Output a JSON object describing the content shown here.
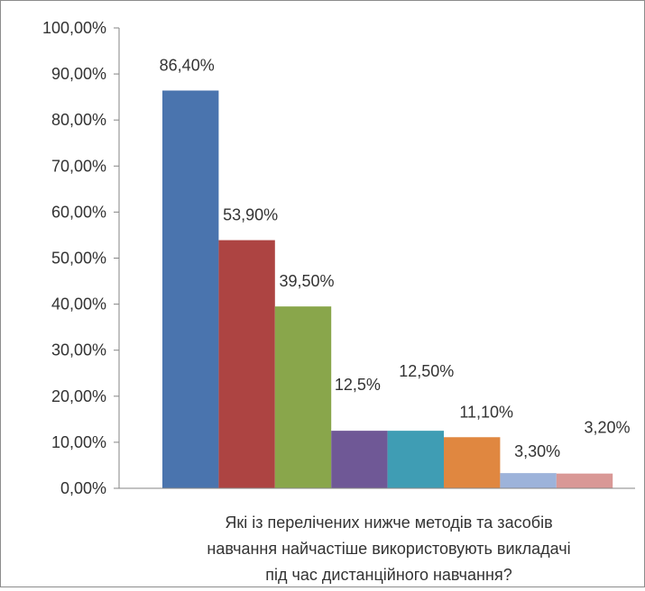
{
  "chart_data": {
    "type": "bar",
    "xlabel_lines": [
      "Які із перелічених нижче методів та засобів",
      "навчання найчастіше  використовують викладачі",
      "під час дистанційного навчання?"
    ],
    "ylim": [
      0,
      100
    ],
    "y_ticks": [
      "0,00%",
      "10,00%",
      "20,00%",
      "30,00%",
      "40,00%",
      "50,00%",
      "60,00%",
      "70,00%",
      "80,00%",
      "90,00%",
      "100,00%"
    ],
    "grid": false,
    "legend": "none",
    "series": [
      {
        "value": 86.4,
        "label": "86,40%",
        "color": "#4a74ae"
      },
      {
        "value": 53.9,
        "label": "53,90%",
        "color": "#ad4442"
      },
      {
        "value": 39.5,
        "label": "39,50%",
        "color": "#89a64b"
      },
      {
        "value": 12.5,
        "label": "12,5%",
        "color": "#6f5896"
      },
      {
        "value": 12.5,
        "label": "12,50%",
        "color": "#3f9db4"
      },
      {
        "value": 11.1,
        "label": "11,10%",
        "color": "#e08740"
      },
      {
        "value": 3.3,
        "label": "3,30%",
        "color": "#9db3da"
      },
      {
        "value": 3.2,
        "label": "3,20%",
        "color": "#d99896"
      }
    ]
  }
}
